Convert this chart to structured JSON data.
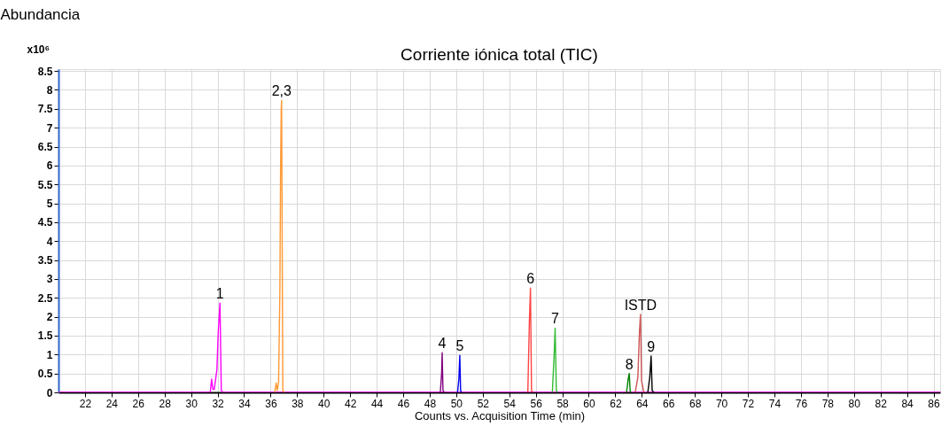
{
  "chart_data": {
    "type": "line",
    "title": "Corriente iónica total (TIC)",
    "xlabel": "Counts vs. Acquisition Time (min)",
    "ylabel": "Abundancia",
    "xlim": [
      20,
      86.5
    ],
    "xticks": [
      22,
      24,
      26,
      28,
      30,
      32,
      34,
      36,
      38,
      40,
      42,
      44,
      46,
      48,
      50,
      52,
      54,
      56,
      58,
      60,
      62,
      64,
      66,
      68,
      70,
      72,
      74,
      76,
      78,
      80,
      82,
      84,
      86
    ],
    "ylim": [
      0,
      8.55
    ],
    "yticks": [
      0,
      0.5,
      1,
      1.5,
      2,
      2.5,
      3,
      3.5,
      4,
      4.5,
      5,
      5.5,
      6,
      6.5,
      7,
      7.5,
      8,
      8.5
    ],
    "grid": true,
    "marker": "none",
    "line_style": "solid",
    "series": [
      {
        "color": "#ff00ff",
        "x": [
          20,
          31.45,
          31.55,
          31.65,
          31.75,
          31.95,
          32.05,
          32.18,
          32.28,
          32.4,
          86.5
        ],
        "values": [
          0,
          0,
          0.35,
          0.08,
          0.08,
          0.6,
          1.6,
          2.36,
          0.05,
          0,
          0
        ]
      },
      {
        "color": "#ff9933",
        "x": [
          36.3,
          36.42,
          36.5,
          36.6,
          36.7,
          36.75,
          36.8,
          36.83,
          36.92,
          37.05
        ],
        "values": [
          0,
          0.25,
          0.05,
          0.25,
          2.7,
          5.8,
          7.5,
          7.72,
          0.05,
          0
        ]
      },
      {
        "color": "#800080",
        "x": [
          48.8,
          48.9,
          48.94,
          49.0,
          49.1
        ],
        "values": [
          0,
          0.5,
          1.05,
          0.05,
          0
        ]
      },
      {
        "color": "#0000ee",
        "x": [
          50.1,
          50.2,
          50.27,
          50.33,
          50.4
        ],
        "values": [
          0,
          0.35,
          0.98,
          0.05,
          0
        ]
      },
      {
        "color": "#ff4444",
        "x": [
          55.4,
          55.52,
          55.6,
          55.68,
          55.8
        ],
        "values": [
          0,
          1.9,
          2.76,
          0.05,
          0
        ]
      },
      {
        "color": "#33bb33",
        "x": [
          57.25,
          57.38,
          57.46,
          57.55,
          57.65
        ],
        "values": [
          0,
          0.95,
          1.7,
          0.05,
          0
        ]
      },
      {
        "color": "#008000",
        "x": [
          62.85,
          62.97,
          63.05,
          63.12,
          63.2
        ],
        "values": [
          0,
          0.35,
          0.5,
          0.03,
          0
        ]
      },
      {
        "color": "#cc5555",
        "x": [
          63.5,
          63.7,
          63.82,
          63.9,
          63.98,
          64.15
        ],
        "values": [
          0,
          0.4,
          1.6,
          2.06,
          0.3,
          0
        ]
      },
      {
        "color": "#000000",
        "x": [
          64.45,
          64.6,
          64.7,
          64.78,
          64.9
        ],
        "values": [
          0,
          0.4,
          0.96,
          0.05,
          0
        ]
      }
    ],
    "annotations": [
      "x10⁶",
      {
        "text": "1",
        "x": 32.18,
        "y": 2.36
      },
      {
        "text": "2,3",
        "x": 36.83,
        "y": 7.72
      },
      {
        "text": "4",
        "x": 48.94,
        "y": 1.05
      },
      {
        "text": "5",
        "x": 50.27,
        "y": 0.98
      },
      {
        "text": "6",
        "x": 55.6,
        "y": 2.76
      },
      {
        "text": "7",
        "x": 57.46,
        "y": 1.7
      },
      {
        "text": "8",
        "x": 63.05,
        "y": 0.5
      },
      {
        "text": "ISTD",
        "x": 63.9,
        "y": 2.06
      },
      {
        "text": "9",
        "x": 64.7,
        "y": 0.96
      }
    ]
  }
}
